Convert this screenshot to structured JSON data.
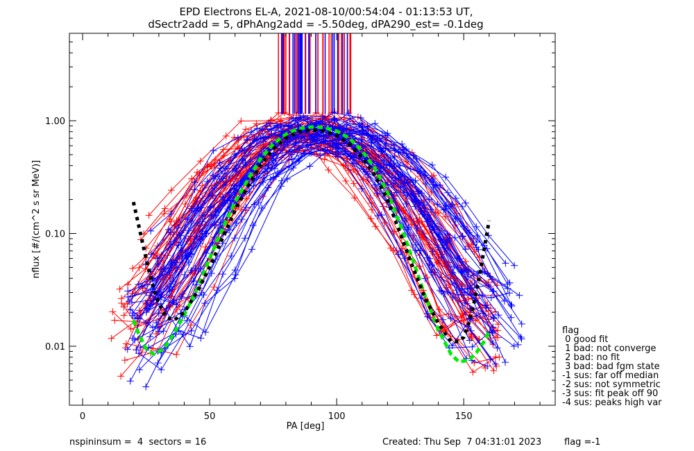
{
  "chart_data": {
    "type": "line",
    "title": "EPD Electrons EL-A, 2021-08-10/00:54:04 - 01:13:53 UT,",
    "subtitle": "dSectr2add = 5, dPhAng2add = -5.50deg, dPA290_est=  -0.1deg",
    "xlabel": "PA [deg]",
    "ylabel": "nflux [#/(cm^2 s sr MeV)]",
    "xlim": [
      -5.2,
      186
    ],
    "ylim": [
      0.003,
      5.96
    ],
    "yscale": "log",
    "x_ticks": [
      {
        "value": 0,
        "label": "0"
      },
      {
        "value": 50,
        "label": "50"
      },
      {
        "value": 100,
        "label": "100"
      },
      {
        "value": 150,
        "label": "150"
      }
    ],
    "x_minor_step": 10,
    "y_ticks": [
      {
        "value": 1.0,
        "label": "1.00"
      },
      {
        "value": 0.1,
        "label": "0.10"
      },
      {
        "value": 0.01,
        "label": "0.01"
      }
    ],
    "grid": false,
    "colors": {
      "red_series": "#ff0000",
      "blue_series": "#0000ff",
      "green_fit": "#00ee00",
      "black_fit": "#000000"
    },
    "fits": [
      {
        "name": "green-fit",
        "color": "#00ee00",
        "style": "dashed-thick",
        "x": [
          20,
          22,
          25,
          28,
          32,
          36,
          40,
          45,
          50,
          55,
          60,
          65,
          70,
          75,
          80,
          85,
          90,
          92,
          95,
          100,
          105,
          110,
          115,
          120,
          125,
          130,
          135,
          140,
          145,
          148,
          152,
          155,
          158,
          160
        ],
        "y": [
          0.017,
          0.013,
          0.0095,
          0.0085,
          0.0095,
          0.013,
          0.019,
          0.032,
          0.06,
          0.11,
          0.19,
          0.3,
          0.46,
          0.62,
          0.76,
          0.85,
          0.88,
          0.88,
          0.87,
          0.81,
          0.7,
          0.54,
          0.38,
          0.23,
          0.12,
          0.058,
          0.027,
          0.014,
          0.0085,
          0.0073,
          0.0075,
          0.0088,
          0.011,
          0.0135
        ]
      },
      {
        "name": "black-fit",
        "color": "#000000",
        "style": "dotted-thick",
        "x": [
          20,
          22,
          24,
          26,
          28,
          30,
          33,
          36,
          40,
          45,
          50,
          55,
          60,
          65,
          70,
          75,
          80,
          85,
          90,
          95,
          100,
          105,
          110,
          115,
          120,
          125,
          130,
          135,
          140,
          145,
          148,
          150,
          152,
          154,
          156,
          158,
          160
        ],
        "y": [
          0.19,
          0.12,
          0.075,
          0.048,
          0.032,
          0.024,
          0.018,
          0.017,
          0.02,
          0.03,
          0.05,
          0.09,
          0.16,
          0.26,
          0.4,
          0.56,
          0.7,
          0.8,
          0.83,
          0.81,
          0.74,
          0.62,
          0.47,
          0.33,
          0.2,
          0.1,
          0.05,
          0.026,
          0.016,
          0.011,
          0.011,
          0.012,
          0.016,
          0.024,
          0.04,
          0.072,
          0.13
        ]
      }
    ],
    "spectra_groups": [
      {
        "name": "red",
        "color": "#ff0000",
        "count": 40,
        "peak_range": [
          76,
          98
        ],
        "amp_range": [
          0.55,
          1.15
        ],
        "width_range": [
          18,
          28
        ],
        "pa_range": [
          10,
          165
        ]
      },
      {
        "name": "blue",
        "color": "#0000ff",
        "count": 42,
        "peak_range": [
          78,
          106
        ],
        "amp_range": [
          0.5,
          1.05
        ],
        "width_range": [
          16,
          26
        ],
        "pa_range": [
          18,
          172
        ]
      }
    ],
    "peak_markers": {
      "x_range": [
        76,
        106
      ],
      "y_from": 5.96,
      "y_to": 1.15,
      "count": 46
    },
    "legend": {
      "placement": "right-bottom",
      "title": "flag",
      "entries": [
        " 0 good fit",
        " 1 bad: not converge",
        " 2 bad: no fit",
        " 3 bad: bad fgm state",
        "-1 sus: far off median",
        "-2 sus: not symmetric",
        "-3 sus: fit peak off 90",
        "-4 sus: peaks high var"
      ]
    }
  },
  "footer": {
    "left": "nspininsum =  4  sectors = 16",
    "created": "Created: Thu Sep  7 04:31:01 2023",
    "flag": "flag =-1"
  }
}
